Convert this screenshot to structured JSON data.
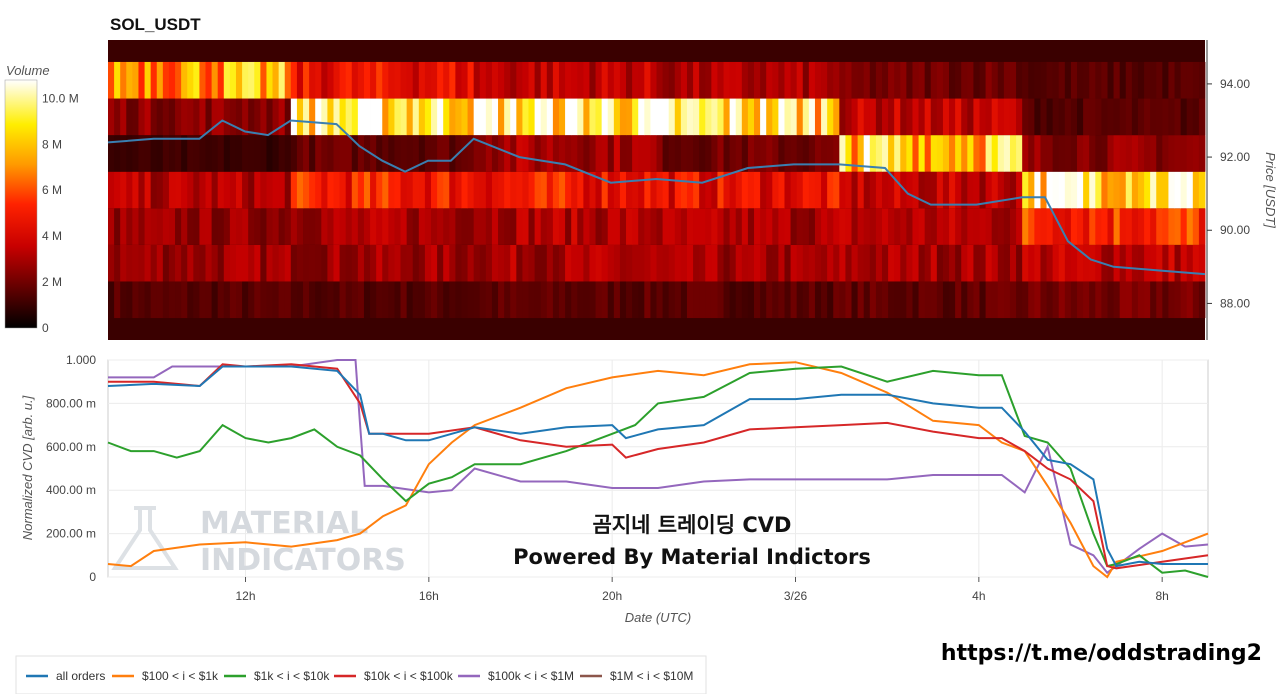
{
  "title": "SOL_USDT",
  "colorbar": {
    "label": "Volume",
    "ticks": [
      "0",
      "2 M",
      "4 M",
      "6 M",
      "8 M",
      "10.0 M"
    ],
    "tick_values": [
      0,
      2,
      4,
      6,
      8,
      10
    ],
    "max": 10.8
  },
  "overlay": {
    "line1": "곰지네 트레이딩 CVD",
    "line2": "Powered By Material Indictors"
  },
  "watermark": {
    "line1": "MATERIAL",
    "line2": "INDICATORS"
  },
  "link": "https://t.me/oddstrading2",
  "colors": {
    "price_line": "#3a7fb0",
    "all_orders": "#1f77b4",
    "s100_1k": "#ff7f0e",
    "s1k_10k": "#2ca02c",
    "s10k_100k": "#d62728",
    "s100k_1m": "#9467bd",
    "s1m_10m": "#8c564b"
  },
  "chart_data": [
    {
      "type": "heatmap",
      "title": "SOL_USDT",
      "ylabel": "Price [USDT]",
      "ylim": [
        87.0,
        95.2
      ],
      "yticks": [
        "88.00",
        "90.00",
        "92.00",
        "94.00"
      ],
      "ytick_values": [
        88,
        90,
        92,
        94
      ],
      "xlim_hours": [
        9.0,
        33.0
      ],
      "row_edges": [
        87.6,
        88.6,
        89.6,
        90.6,
        91.6,
        92.6,
        93.6,
        94.6
      ],
      "row_base_volume_M": [
        [
          1.5,
          1.5,
          1.6,
          1.6,
          1.7,
          2.0
        ],
        [
          2.8,
          2.8,
          3.0,
          2.8,
          3.0,
          3.4
        ],
        [
          2.6,
          3.0,
          3.2,
          3.0,
          3.2,
          5.5
        ],
        [
          3.2,
          5.0,
          4.8,
          4.5,
          3.5,
          9.5
        ],
        [
          1.0,
          1.8,
          3.0,
          2.0,
          8.5,
          2.5
        ],
        [
          2.5,
          9.5,
          9.5,
          9.0,
          3.5,
          1.5
        ],
        [
          7.5,
          4.5,
          3.5,
          3.0,
          2.0,
          1.5
        ],
        [
          3.5,
          3.0,
          2.5,
          2.5,
          2.5,
          3.0
        ]
      ],
      "series": [
        {
          "name": "Price",
          "x": [
            9.0,
            10.0,
            11.0,
            11.5,
            12.0,
            12.5,
            13.0,
            14.0,
            14.5,
            15.0,
            15.5,
            16.0,
            16.5,
            17.0,
            18.0,
            19.0,
            20.0,
            21.0,
            22.0,
            23.0,
            24.0,
            25.0,
            26.0,
            26.5,
            27.0,
            28.0,
            29.0,
            29.5,
            30.0,
            30.5,
            31.0,
            32.0,
            33.0
          ],
          "y": [
            92.4,
            92.5,
            92.5,
            93.0,
            92.7,
            92.6,
            93.0,
            92.9,
            92.3,
            91.9,
            91.6,
            91.9,
            91.9,
            92.5,
            92.0,
            91.8,
            91.3,
            91.4,
            91.3,
            91.7,
            91.8,
            91.8,
            91.7,
            91.0,
            90.7,
            90.7,
            90.9,
            90.9,
            89.7,
            89.2,
            89.0,
            88.9,
            88.8
          ]
        }
      ]
    },
    {
      "type": "line",
      "xlabel": "Date (UTC)",
      "ylabel": "Normalized CVD [arb. u.]",
      "ylim": [
        0,
        1.0
      ],
      "xlim_hours": [
        9.0,
        33.0
      ],
      "yticks": [
        "0",
        "200.00 m",
        "400.00 m",
        "600.00 m",
        "800.00 m",
        "1.000"
      ],
      "ytick_values": [
        0,
        0.2,
        0.4,
        0.6,
        0.8,
        1.0
      ],
      "xticks": [
        "12h",
        "16h",
        "20h",
        "3/26",
        "4h",
        "8h"
      ],
      "xtick_hours": [
        12,
        16,
        20,
        24,
        28,
        32
      ],
      "series": [
        {
          "name": "all orders",
          "x": [
            9.0,
            10.0,
            11.0,
            11.5,
            12.0,
            13.0,
            14.0,
            14.5,
            14.7,
            15.0,
            15.5,
            16.0,
            17.0,
            18.0,
            19.0,
            20.0,
            20.3,
            21.0,
            22.0,
            23.0,
            24.0,
            25.0,
            26.0,
            27.0,
            28.0,
            28.5,
            29.0,
            29.5,
            30.0,
            30.5,
            30.8,
            31.0,
            31.5,
            32.0,
            32.5,
            33.0
          ],
          "y": [
            0.88,
            0.89,
            0.88,
            0.97,
            0.97,
            0.97,
            0.95,
            0.84,
            0.66,
            0.66,
            0.63,
            0.63,
            0.69,
            0.66,
            0.69,
            0.7,
            0.64,
            0.68,
            0.7,
            0.82,
            0.82,
            0.84,
            0.84,
            0.8,
            0.78,
            0.78,
            0.67,
            0.54,
            0.52,
            0.45,
            0.13,
            0.05,
            0.07,
            0.06,
            0.06,
            0.06
          ]
        },
        {
          "name": "$100 < i < $1k",
          "x": [
            9.0,
            9.5,
            10.0,
            11.0,
            12.0,
            13.0,
            14.0,
            14.5,
            15.0,
            15.5,
            16.0,
            16.5,
            17.0,
            18.0,
            19.0,
            20.0,
            21.0,
            22.0,
            23.0,
            24.0,
            25.0,
            26.0,
            27.0,
            28.0,
            28.5,
            29.0,
            29.5,
            30.0,
            30.5,
            30.8,
            31.0,
            32.0,
            33.0
          ],
          "y": [
            0.06,
            0.05,
            0.12,
            0.15,
            0.16,
            0.14,
            0.17,
            0.2,
            0.28,
            0.33,
            0.52,
            0.62,
            0.7,
            0.78,
            0.87,
            0.92,
            0.95,
            0.93,
            0.98,
            0.99,
            0.94,
            0.85,
            0.72,
            0.7,
            0.62,
            0.58,
            0.42,
            0.25,
            0.05,
            0.0,
            0.07,
            0.12,
            0.2
          ]
        },
        {
          "name": "$1k < i < $10k",
          "x": [
            9.0,
            9.5,
            10.0,
            10.5,
            11.0,
            11.5,
            12.0,
            12.5,
            13.0,
            13.5,
            14.0,
            14.5,
            15.0,
            15.5,
            16.0,
            16.5,
            17.0,
            18.0,
            19.0,
            20.0,
            20.5,
            21.0,
            22.0,
            23.0,
            24.0,
            25.0,
            26.0,
            27.0,
            28.0,
            28.5,
            29.0,
            29.5,
            30.0,
            30.5,
            30.8,
            31.0,
            31.5,
            32.0,
            32.5,
            33.0
          ],
          "y": [
            0.62,
            0.58,
            0.58,
            0.55,
            0.58,
            0.7,
            0.64,
            0.62,
            0.64,
            0.68,
            0.6,
            0.56,
            0.45,
            0.35,
            0.43,
            0.46,
            0.52,
            0.52,
            0.58,
            0.66,
            0.7,
            0.8,
            0.83,
            0.94,
            0.96,
            0.97,
            0.9,
            0.95,
            0.93,
            0.93,
            0.65,
            0.62,
            0.5,
            0.2,
            0.05,
            0.06,
            0.1,
            0.02,
            0.03,
            0.0
          ]
        },
        {
          "name": "$10k < i < $100k",
          "x": [
            9.0,
            10.0,
            11.0,
            11.5,
            12.0,
            13.0,
            14.0,
            14.5,
            14.7,
            15.0,
            16.0,
            17.0,
            18.0,
            19.0,
            20.0,
            20.3,
            21.0,
            22.0,
            23.0,
            24.0,
            25.0,
            26.0,
            27.0,
            28.0,
            28.5,
            29.0,
            29.5,
            30.0,
            30.5,
            30.8,
            31.0,
            32.0,
            33.0
          ],
          "y": [
            0.9,
            0.9,
            0.88,
            0.98,
            0.97,
            0.98,
            0.96,
            0.8,
            0.66,
            0.66,
            0.66,
            0.69,
            0.63,
            0.6,
            0.61,
            0.55,
            0.59,
            0.62,
            0.68,
            0.69,
            0.7,
            0.71,
            0.67,
            0.64,
            0.64,
            0.58,
            0.5,
            0.45,
            0.35,
            0.05,
            0.04,
            0.07,
            0.1
          ]
        },
        {
          "name": "$100k < i < $1M",
          "x": [
            9.0,
            10.0,
            10.4,
            11.0,
            12.0,
            13.0,
            14.0,
            14.4,
            14.5,
            14.6,
            15.0,
            16.0,
            16.5,
            17.0,
            18.0,
            19.0,
            20.0,
            21.0,
            22.0,
            23.0,
            24.0,
            25.0,
            26.0,
            27.0,
            28.0,
            28.5,
            29.0,
            29.5,
            30.0,
            30.5,
            30.8,
            31.0,
            31.5,
            32.0,
            32.5,
            33.0
          ],
          "y": [
            0.92,
            0.92,
            0.97,
            0.97,
            0.97,
            0.97,
            1.0,
            1.0,
            0.7,
            0.42,
            0.42,
            0.39,
            0.4,
            0.5,
            0.44,
            0.44,
            0.41,
            0.41,
            0.44,
            0.45,
            0.45,
            0.45,
            0.45,
            0.47,
            0.47,
            0.47,
            0.39,
            0.6,
            0.15,
            0.1,
            0.02,
            0.05,
            0.13,
            0.2,
            0.14,
            0.15
          ]
        },
        {
          "name": "$1M < i < $10M",
          "x": [],
          "y": []
        }
      ]
    }
  ]
}
